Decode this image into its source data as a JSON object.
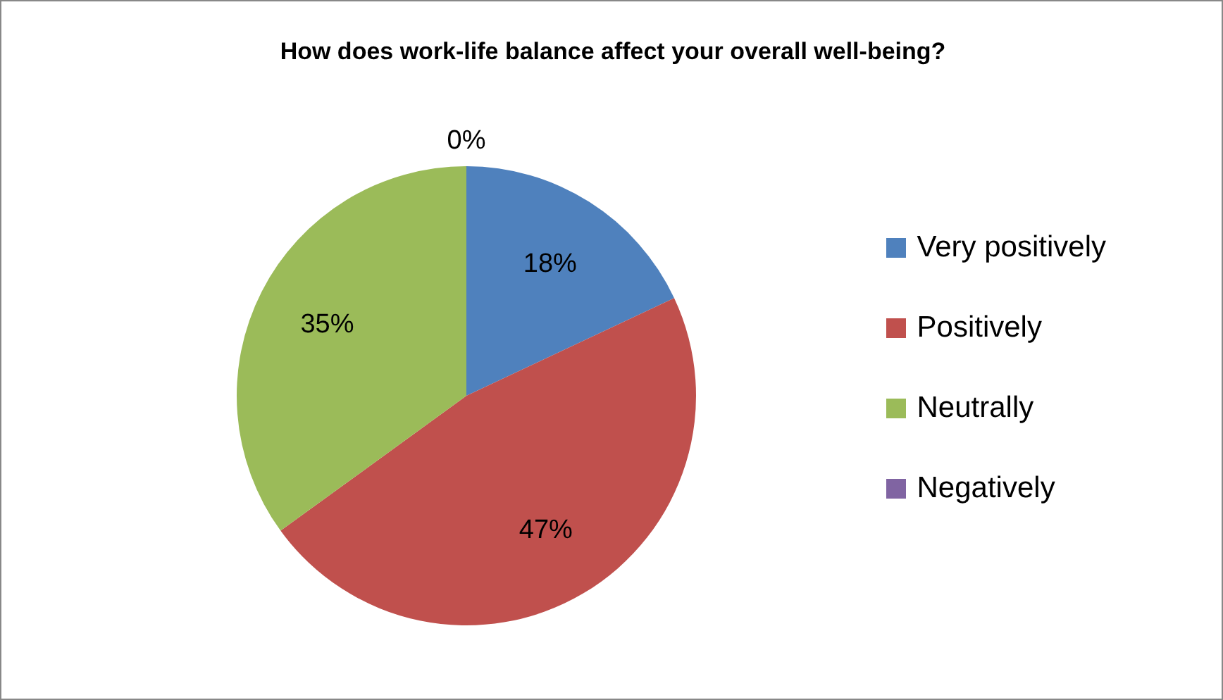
{
  "chart_data": {
    "type": "pie",
    "title": "How does work-life balance affect your overall well-being?",
    "categories": [
      "Very positively",
      "Positively",
      "Neutrally",
      "Negatively"
    ],
    "values": [
      18,
      47,
      35,
      0
    ],
    "colors": [
      "#4f81bd",
      "#c0504d",
      "#9bbb59",
      "#8064a2"
    ],
    "value_labels": [
      "18%",
      "47%",
      "35%",
      "0%"
    ],
    "legend": "right"
  }
}
